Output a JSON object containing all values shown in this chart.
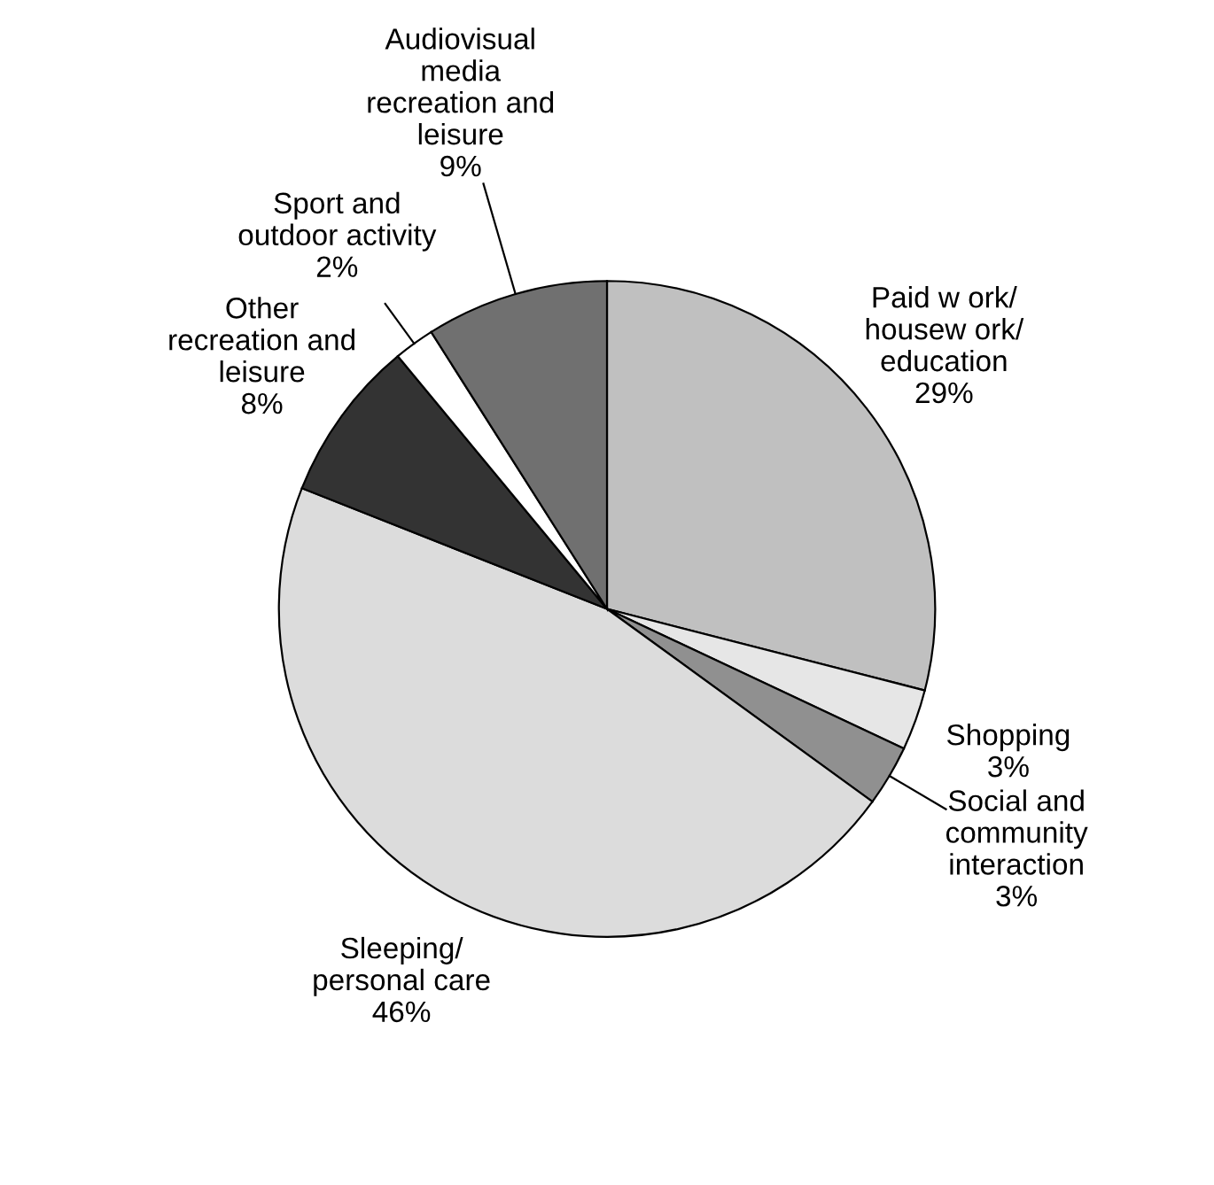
{
  "chart_data": {
    "type": "pie",
    "categories": [
      "Paid w ork/\nhousew ork/\neducation",
      "Shopping",
      "Social and\ncommunity\ninteraction",
      "Sleeping/\npersonal care",
      "Other\nrecreation and\nleisure",
      "Sport and\noutdoor activity",
      "Audiovisual\nmedia\nrecreation and\nleisure"
    ],
    "values": [
      29,
      3,
      3,
      46,
      8,
      2,
      9
    ],
    "value_labels": [
      "29%",
      "3%",
      "3%",
      "46%",
      "8%",
      "2%",
      "9%"
    ],
    "colors": [
      "#c0c0c0",
      "#e6e6e6",
      "#909090",
      "#dcdcdc",
      "#333333",
      "#ffffff",
      "#707070"
    ]
  }
}
